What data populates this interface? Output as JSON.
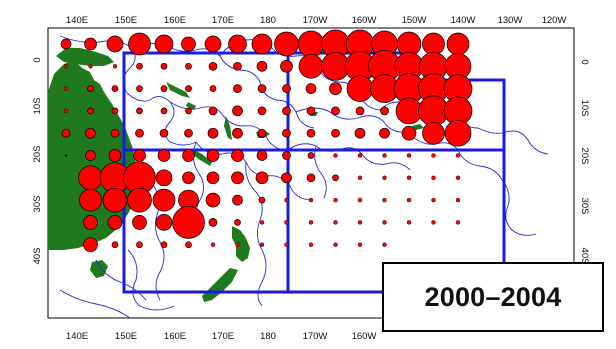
{
  "map": {
    "period_label": "2000–2004",
    "x_axis_ticks": [
      "140E",
      "150E",
      "160E",
      "170E",
      "180",
      "170W",
      "160W",
      "150W",
      "140W",
      "130W",
      "120W"
    ],
    "y_axis_ticks": [
      "0",
      "10S",
      "20S",
      "30S",
      "40S"
    ],
    "colors": {
      "background": "#ffffff",
      "land": "#1f7a1f",
      "bubble_fill": "#ff0000",
      "bubble_outline": "#000000",
      "eez_lines": "#2a2ad6",
      "region_boxes": "#1a1ae6"
    },
    "bubbles": [
      [
        0,
        0,
        5
      ],
      [
        0,
        1,
        6
      ],
      [
        0,
        2,
        8
      ],
      [
        0,
        3,
        11
      ],
      [
        0,
        4,
        9
      ],
      [
        0,
        5,
        7
      ],
      [
        0,
        6,
        8
      ],
      [
        0,
        7,
        9
      ],
      [
        0,
        8,
        10
      ],
      [
        0,
        9,
        12
      ],
      [
        0,
        10,
        13
      ],
      [
        0,
        11,
        14
      ],
      [
        0,
        12,
        14
      ],
      [
        0,
        13,
        13
      ],
      [
        0,
        14,
        12
      ],
      [
        0,
        15,
        11
      ],
      [
        0,
        16,
        11
      ],
      [
        1,
        0,
        2
      ],
      [
        1,
        1,
        2
      ],
      [
        1,
        2,
        2
      ],
      [
        1,
        3,
        3
      ],
      [
        1,
        4,
        3
      ],
      [
        1,
        5,
        3
      ],
      [
        1,
        6,
        4
      ],
      [
        1,
        7,
        4
      ],
      [
        1,
        8,
        5
      ],
      [
        1,
        9,
        6
      ],
      [
        1,
        10,
        12
      ],
      [
        1,
        11,
        14
      ],
      [
        1,
        12,
        15
      ],
      [
        1,
        13,
        16
      ],
      [
        1,
        14,
        14
      ],
      [
        1,
        15,
        14
      ],
      [
        1,
        16,
        13
      ],
      [
        2,
        0,
        2
      ],
      [
        2,
        1,
        3
      ],
      [
        2,
        2,
        3
      ],
      [
        2,
        3,
        3
      ],
      [
        2,
        4,
        3
      ],
      [
        2,
        5,
        3
      ],
      [
        2,
        6,
        3
      ],
      [
        2,
        7,
        4
      ],
      [
        2,
        8,
        4
      ],
      [
        2,
        9,
        4
      ],
      [
        2,
        10,
        5
      ],
      [
        2,
        11,
        6
      ],
      [
        2,
        12,
        13
      ],
      [
        2,
        13,
        14
      ],
      [
        2,
        14,
        15
      ],
      [
        2,
        15,
        15
      ],
      [
        2,
        16,
        14
      ],
      [
        3,
        0,
        2
      ],
      [
        3,
        1,
        3
      ],
      [
        3,
        2,
        3
      ],
      [
        3,
        3,
        3
      ],
      [
        3,
        4,
        3
      ],
      [
        3,
        5,
        3
      ],
      [
        3,
        6,
        4
      ],
      [
        3,
        7,
        5
      ],
      [
        3,
        8,
        4
      ],
      [
        3,
        9,
        4
      ],
      [
        3,
        10,
        4
      ],
      [
        3,
        11,
        4
      ],
      [
        3,
        12,
        4
      ],
      [
        3,
        13,
        4
      ],
      [
        3,
        14,
        13
      ],
      [
        3,
        15,
        15
      ],
      [
        3,
        16,
        14
      ],
      [
        4,
        0,
        4
      ],
      [
        4,
        1,
        5
      ],
      [
        4,
        2,
        4
      ],
      [
        4,
        3,
        4
      ],
      [
        4,
        4,
        4
      ],
      [
        4,
        5,
        4
      ],
      [
        4,
        6,
        5
      ],
      [
        4,
        7,
        5
      ],
      [
        4,
        8,
        4
      ],
      [
        4,
        9,
        4
      ],
      [
        4,
        10,
        4
      ],
      [
        4,
        11,
        4
      ],
      [
        4,
        12,
        5
      ],
      [
        4,
        13,
        5
      ],
      [
        4,
        14,
        7
      ],
      [
        4,
        15,
        11
      ],
      [
        4,
        16,
        13
      ],
      [
        5,
        0,
        1
      ],
      [
        5,
        1,
        5
      ],
      [
        5,
        2,
        6
      ],
      [
        5,
        3,
        6
      ],
      [
        5,
        4,
        6
      ],
      [
        5,
        5,
        6
      ],
      [
        5,
        6,
        6
      ],
      [
        5,
        7,
        6
      ],
      [
        5,
        8,
        5
      ],
      [
        5,
        9,
        4
      ],
      [
        5,
        10,
        3
      ],
      [
        5,
        11,
        2
      ],
      [
        5,
        12,
        2
      ],
      [
        5,
        13,
        2
      ],
      [
        5,
        14,
        2
      ],
      [
        5,
        15,
        2
      ],
      [
        5,
        16,
        2
      ],
      [
        6,
        1,
        12
      ],
      [
        6,
        2,
        15
      ],
      [
        6,
        3,
        16
      ],
      [
        6,
        4,
        8
      ],
      [
        6,
        5,
        6
      ],
      [
        6,
        6,
        6
      ],
      [
        6,
        7,
        6
      ],
      [
        6,
        8,
        6
      ],
      [
        6,
        9,
        5
      ],
      [
        6,
        10,
        4
      ],
      [
        6,
        11,
        3
      ],
      [
        6,
        12,
        2
      ],
      [
        6,
        13,
        2
      ],
      [
        6,
        14,
        2
      ],
      [
        6,
        15,
        2
      ],
      [
        6,
        16,
        2
      ],
      [
        7,
        1,
        11
      ],
      [
        7,
        2,
        12
      ],
      [
        7,
        3,
        12
      ],
      [
        7,
        4,
        11
      ],
      [
        7,
        5,
        10
      ],
      [
        7,
        6,
        7
      ],
      [
        7,
        7,
        5
      ],
      [
        7,
        8,
        3
      ],
      [
        7,
        9,
        2
      ],
      [
        7,
        10,
        2
      ],
      [
        7,
        11,
        2
      ],
      [
        7,
        12,
        2
      ],
      [
        7,
        13,
        2
      ],
      [
        7,
        14,
        2
      ],
      [
        7,
        15,
        2
      ],
      [
        7,
        16,
        2
      ],
      [
        8,
        1,
        7
      ],
      [
        8,
        2,
        7
      ],
      [
        8,
        3,
        7
      ],
      [
        8,
        4,
        8
      ],
      [
        8,
        5,
        16
      ],
      [
        8,
        6,
        4
      ],
      [
        8,
        7,
        3
      ],
      [
        8,
        8,
        2
      ],
      [
        8,
        9,
        2
      ],
      [
        8,
        10,
        2
      ],
      [
        8,
        11,
        2
      ],
      [
        8,
        12,
        2
      ],
      [
        8,
        13,
        2
      ],
      [
        8,
        14,
        2
      ],
      [
        8,
        15,
        2
      ],
      [
        8,
        16,
        2
      ],
      [
        9,
        1,
        7
      ],
      [
        9,
        2,
        3
      ],
      [
        9,
        3,
        3
      ],
      [
        9,
        4,
        3
      ],
      [
        9,
        5,
        3
      ],
      [
        9,
        6,
        2
      ],
      [
        9,
        7,
        2
      ],
      [
        9,
        8,
        2
      ],
      [
        9,
        9,
        2
      ],
      [
        9,
        10,
        2
      ],
      [
        9,
        11,
        2
      ],
      [
        9,
        12,
        2
      ],
      [
        9,
        13,
        2
      ]
    ]
  }
}
